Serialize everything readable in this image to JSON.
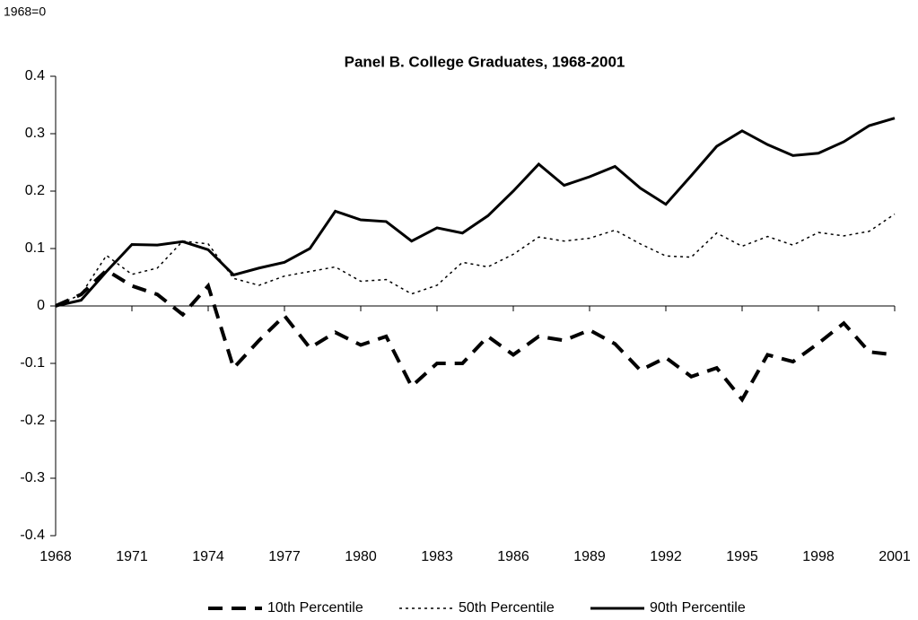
{
  "chart_data": {
    "type": "line",
    "title": "Panel B.  College Graduates, 1968-2001",
    "y_label": "1968=0",
    "x": [
      1968,
      1969,
      1970,
      1971,
      1972,
      1973,
      1974,
      1975,
      1976,
      1977,
      1978,
      1979,
      1980,
      1981,
      1982,
      1983,
      1984,
      1985,
      1986,
      1987,
      1988,
      1989,
      1990,
      1991,
      1992,
      1993,
      1994,
      1995,
      1996,
      1997,
      1998,
      1999,
      2000,
      2001
    ],
    "xlim": [
      1968,
      2001
    ],
    "xticks": [
      1968,
      1971,
      1974,
      1977,
      1980,
      1983,
      1986,
      1989,
      1992,
      1995,
      1998,
      2001
    ],
    "ylim": [
      -0.4,
      0.4
    ],
    "yticks": [
      -0.4,
      -0.3,
      -0.2,
      -0.1,
      0,
      0.1,
      0.2,
      0.3,
      0.4
    ],
    "legend": "bottom",
    "series": [
      {
        "name": "10th Percentile",
        "color": "#000000",
        "dash": "dashed",
        "values": [
          0,
          0.02,
          0.062,
          0.035,
          0.02,
          -0.015,
          0.035,
          -0.108,
          -0.06,
          -0.017,
          -0.073,
          -0.046,
          -0.068,
          -0.053,
          -0.14,
          -0.1,
          -0.1,
          -0.053,
          -0.085,
          -0.053,
          -0.06,
          -0.042,
          -0.066,
          -0.112,
          -0.09,
          -0.123,
          -0.108,
          -0.163,
          -0.085,
          -0.097,
          -0.065,
          -0.03,
          -0.08,
          -0.085
        ]
      },
      {
        "name": "50th Percentile",
        "color": "#000000",
        "dash": "dotted",
        "values": [
          0,
          0.02,
          0.088,
          0.055,
          0.066,
          0.113,
          0.108,
          0.048,
          0.036,
          0.052,
          0.06,
          0.068,
          0.043,
          0.046,
          0.021,
          0.036,
          0.076,
          0.068,
          0.09,
          0.12,
          0.113,
          0.118,
          0.132,
          0.108,
          0.087,
          0.085,
          0.127,
          0.104,
          0.121,
          0.106,
          0.128,
          0.122,
          0.13,
          0.16
        ]
      },
      {
        "name": "90th Percentile",
        "color": "#000000",
        "dash": "solid",
        "values": [
          0,
          0.01,
          0.06,
          0.107,
          0.106,
          0.112,
          0.098,
          0.054,
          0.066,
          0.076,
          0.1,
          0.165,
          0.15,
          0.147,
          0.113,
          0.136,
          0.127,
          0.157,
          0.2,
          0.247,
          0.21,
          0.225,
          0.243,
          0.205,
          0.177,
          0.227,
          0.278,
          0.305,
          0.281,
          0.262,
          0.266,
          0.286,
          0.314,
          0.327
        ]
      }
    ]
  }
}
